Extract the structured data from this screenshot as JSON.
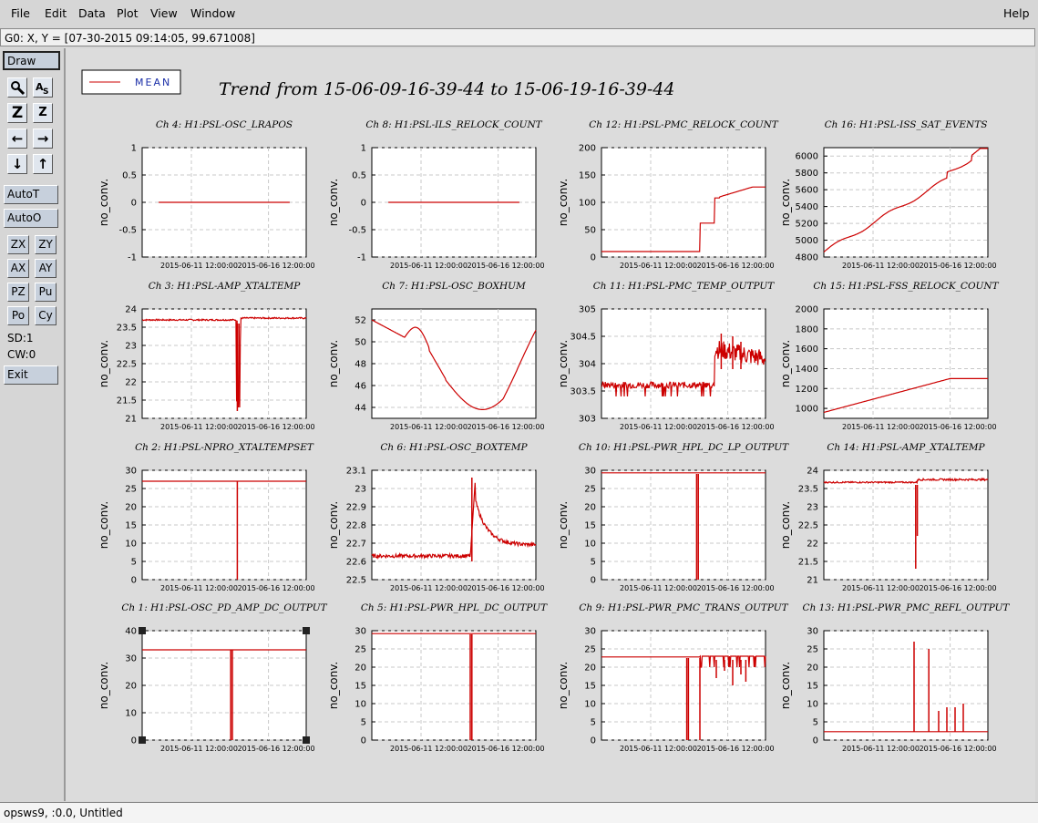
{
  "menu": {
    "file": "File",
    "edit": "Edit",
    "data": "Data",
    "plot": "Plot",
    "view": "View",
    "window": "Window",
    "help": "Help"
  },
  "status": "G0: X, Y = [07-30-2015 09:14:05, 99.671008]",
  "toolbar": {
    "draw": "Draw",
    "autot": "AutoT",
    "autoo": "AutoO",
    "zx": "ZX",
    "zy": "ZY",
    "ax": "AX",
    "ay": "AY",
    "pz": "PZ",
    "pu": "Pu",
    "po": "Po",
    "cy": "Cy",
    "sd": "SD:1",
    "cw": "CW:0",
    "exit": "Exit"
  },
  "legend": {
    "label": "MEAN",
    "color": "#cc0000"
  },
  "title": "Trend from 15-06-09-16-39-44 to 15-06-19-16-39-44",
  "bottom": "opsws9, :0.0, Untitled",
  "xticks": [
    "2015-06-11 12:00:00",
    "2015-06-16 12:00:00"
  ],
  "ylabel": "no_conv.",
  "chart_data": [
    {
      "type": "line",
      "title": "Ch 4: H1:PSL-OSC_LRAPOS",
      "ylim": [
        -1,
        1
      ],
      "yticks": [
        "1",
        "0.5",
        "0",
        "-0.5",
        "-1"
      ],
      "shape": "flat0"
    },
    {
      "type": "line",
      "title": "Ch 8: H1:PSL-ILS_RELOCK_COUNT",
      "ylim": [
        -1,
        1
      ],
      "yticks": [
        "1",
        "0.5",
        "0",
        "-0.5",
        "-1"
      ],
      "shape": "flat0"
    },
    {
      "type": "line",
      "title": "Ch 12: H1:PSL-PMC_RELOCK_COUNT",
      "ylim": [
        0,
        200
      ],
      "yticks": [
        "200",
        "150",
        "100",
        "50",
        "0"
      ],
      "shape": "pmc_relock"
    },
    {
      "type": "line",
      "title": "Ch 16: H1:PSL-ISS_SAT_EVENTS",
      "ylim": [
        4800,
        6100
      ],
      "yticks": [
        "6000",
        "5800",
        "5600",
        "5400",
        "5200",
        "5000",
        "4800"
      ],
      "shape": "iss_sat"
    },
    {
      "type": "line",
      "title": "Ch 3: H1:PSL-AMP_XTALTEMP",
      "ylim": [
        21,
        24
      ],
      "yticks": [
        "24",
        "23.5",
        "23",
        "22.5",
        "22",
        "21.5",
        "21"
      ],
      "shape": "amp_xtal"
    },
    {
      "type": "line",
      "title": "Ch 7: H1:PSL-OSC_BOXHUM",
      "ylim": [
        43,
        53
      ],
      "yticks": [
        "52",
        "50",
        "48",
        "46",
        "44"
      ],
      "shape": "boxhum"
    },
    {
      "type": "line",
      "title": "Ch 11: H1:PSL-PMC_TEMP_OUTPUT",
      "ylim": [
        303,
        305
      ],
      "yticks": [
        "305",
        "304.5",
        "304",
        "303.5",
        "303"
      ],
      "shape": "pmc_temp"
    },
    {
      "type": "line",
      "title": "Ch 15: H1:PSL-FSS_RELOCK_COUNT",
      "ylim": [
        900,
        2000
      ],
      "yticks": [
        "2000",
        "1800",
        "1600",
        "1400",
        "1200",
        "1000"
      ],
      "shape": "fss_relock"
    },
    {
      "type": "line",
      "title": "Ch 2: H1:PSL-NPRO_XTALTEMPSET",
      "ylim": [
        0,
        30
      ],
      "yticks": [
        "30",
        "25",
        "20",
        "15",
        "10",
        "5",
        "0"
      ],
      "shape": "npro"
    },
    {
      "type": "line",
      "title": "Ch 6: H1:PSL-OSC_BOXTEMP",
      "ylim": [
        22.5,
        23.1
      ],
      "yticks": [
        "23.1",
        "23",
        "22.9",
        "22.8",
        "22.7",
        "22.6",
        "22.5"
      ],
      "shape": "boxtemp"
    },
    {
      "type": "line",
      "title": "Ch 10: H1:PSL-PWR_HPL_DC_LP_OUTPUT",
      "ylim": [
        0,
        30
      ],
      "yticks": [
        "30",
        "25",
        "20",
        "15",
        "10",
        "5",
        "0"
      ],
      "shape": "hpl_lp"
    },
    {
      "type": "line",
      "title": "Ch 14: H1:PSL-AMP_XTALTEMP",
      "ylim": [
        21,
        24
      ],
      "yticks": [
        "24",
        "23.5",
        "23",
        "22.5",
        "22",
        "21.5",
        "21"
      ],
      "shape": "amp_xtal2"
    },
    {
      "type": "line",
      "title": "Ch 1: H1:PSL-OSC_PD_AMP_DC_OUTPUT",
      "ylim": [
        0,
        40
      ],
      "yticks": [
        "40",
        "30",
        "20",
        "10",
        "0"
      ],
      "shape": "osc_pd",
      "selected": true
    },
    {
      "type": "line",
      "title": "Ch 5: H1:PSL-PWR_HPL_DC_OUTPUT",
      "ylim": [
        0,
        30
      ],
      "yticks": [
        "30",
        "25",
        "20",
        "15",
        "10",
        "5",
        "0"
      ],
      "shape": "hpl_dc"
    },
    {
      "type": "line",
      "title": "Ch 9: H1:PSL-PWR_PMC_TRANS_OUTPUT",
      "ylim": [
        0,
        30
      ],
      "yticks": [
        "30",
        "25",
        "20",
        "15",
        "10",
        "5",
        "0"
      ],
      "shape": "pmc_trans"
    },
    {
      "type": "line",
      "title": "Ch 13: H1:PSL-PWR_PMC_REFL_OUTPUT",
      "ylim": [
        0,
        30
      ],
      "yticks": [
        "30",
        "25",
        "20",
        "15",
        "10",
        "5",
        "0"
      ],
      "shape": "pmc_refl"
    }
  ]
}
